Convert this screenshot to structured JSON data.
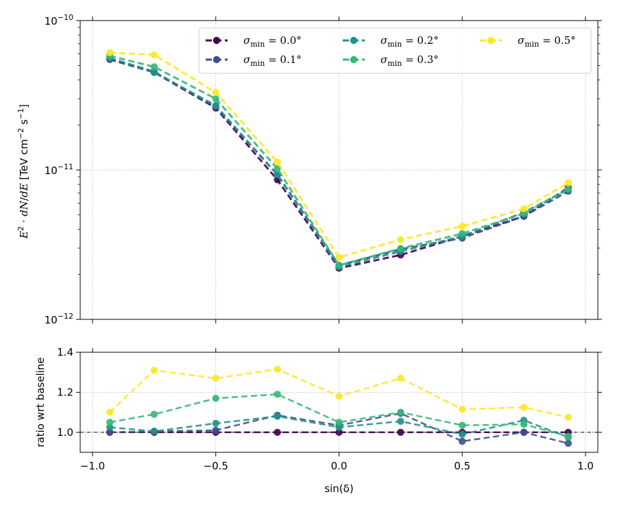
{
  "chart_data": [
    {
      "type": "line",
      "yscale": "log",
      "ylabel": "E^2 · dN/dE  [TeV cm^-2 s^-1]",
      "xlabel": "",
      "ylim": [
        1e-12,
        1e-10
      ],
      "xlim": [
        -1.05,
        1.05
      ],
      "ytick_labels": [
        "10^-12",
        "10^-11",
        "10^-10"
      ],
      "grid": true,
      "legend": {
        "placement": "top-right",
        "columns": 3
      },
      "x": [
        -0.93,
        -0.75,
        -0.5,
        -0.25,
        0.0,
        0.25,
        0.5,
        0.75,
        0.93
      ],
      "series": [
        {
          "name": "σmin = 0.0°",
          "color": "#440154",
          "values": [
            5.5e-11,
            4.5e-11,
            2.6e-11,
            8.6e-12,
            2.2e-12,
            2.7e-12,
            3.6e-12,
            4.9e-12,
            7.6e-12
          ]
        },
        {
          "name": "σmin = 0.1°",
          "color": "#3b528b",
          "values": [
            5.6e-11,
            4.55e-11,
            2.65e-11,
            9.3e-12,
            2.3e-12,
            2.95e-12,
            3.5e-12,
            4.9e-12,
            7.2e-12
          ]
        },
        {
          "name": "σmin = 0.2°",
          "color": "#21918c",
          "values": [
            5.6e-11,
            4.5e-11,
            2.7e-11,
            9.3e-12,
            2.25e-12,
            2.85e-12,
            3.6e-12,
            5.2e-12,
            7.4e-12
          ]
        },
        {
          "name": "σmin = 0.3°",
          "color": "#35b779",
          "values": [
            5.8e-11,
            4.9e-11,
            3e-11,
            1.02e-11,
            2.3e-12,
            2.98e-12,
            3.75e-12,
            5.1e-12,
            7.45e-12
          ]
        },
        {
          "name": "σmin = 0.5°",
          "color": "#fde725",
          "values": [
            6.1e-11,
            5.9e-11,
            3.3e-11,
            1.13e-11,
            2.6e-12,
            3.42e-12,
            4.2e-12,
            5.5e-12,
            8.2e-12
          ]
        }
      ]
    },
    {
      "type": "line",
      "ylabel": "ratio wrt baseline",
      "xlabel": "sin(δ)",
      "ylim": [
        0.9,
        1.4
      ],
      "xlim": [
        -1.05,
        1.05
      ],
      "yticks": [
        1.0,
        1.2,
        1.4
      ],
      "xticks": [
        -1.0,
        -0.5,
        0.0,
        0.5,
        1.0
      ],
      "ytick_labels": [
        "1.0",
        "1.2",
        "1.4"
      ],
      "xtick_labels": [
        "−1.0",
        "−0.5",
        "0.0",
        "0.5",
        "1.0"
      ],
      "grid": true,
      "reference_line": 1.0,
      "x": [
        -0.93,
        -0.75,
        -0.5,
        -0.25,
        0.0,
        0.25,
        0.5,
        0.75,
        0.93
      ],
      "series": [
        {
          "name": "σmin = 0.0°",
          "color": "#440154",
          "values": [
            1.0,
            1.0,
            1.0,
            1.0,
            1.0,
            1.0,
            1.0,
            1.0,
            1.0
          ]
        },
        {
          "name": "σmin = 0.1°",
          "color": "#3b528b",
          "values": [
            1.0,
            1.005,
            1.01,
            1.085,
            1.035,
            1.095,
            0.955,
            1.0,
            0.945
          ]
        },
        {
          "name": "σmin = 0.2°",
          "color": "#21918c",
          "values": [
            1.025,
            1.005,
            1.045,
            1.08,
            1.025,
            1.055,
            0.99,
            1.06,
            0.975
          ]
        },
        {
          "name": "σmin = 0.3°",
          "color": "#35b779",
          "values": [
            1.05,
            1.09,
            1.17,
            1.19,
            1.05,
            1.1,
            1.035,
            1.04,
            0.98
          ]
        },
        {
          "name": "σmin = 0.5°",
          "color": "#fde725",
          "values": [
            1.1,
            1.31,
            1.27,
            1.315,
            1.18,
            1.27,
            1.115,
            1.125,
            1.075
          ]
        }
      ]
    }
  ]
}
